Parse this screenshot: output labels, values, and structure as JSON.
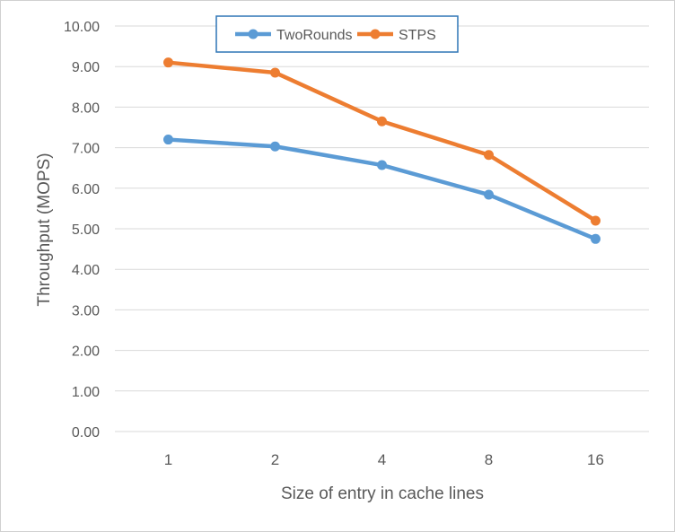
{
  "chart_data": {
    "type": "line",
    "title": "",
    "xlabel": "Size of entry in cache lines",
    "ylabel": "Throughput (MOPS)",
    "categories": [
      "1",
      "2",
      "4",
      "8",
      "16"
    ],
    "ylim": [
      0,
      10
    ],
    "yticks": [
      "0.00",
      "1.00",
      "2.00",
      "3.00",
      "4.00",
      "5.00",
      "6.00",
      "7.00",
      "8.00",
      "9.00",
      "10.00"
    ],
    "grid": true,
    "legend_position": "top",
    "series": [
      {
        "name": "TwoRounds",
        "color": "#5B9BD5",
        "values": [
          7.2,
          7.03,
          6.57,
          5.84,
          4.75
        ]
      },
      {
        "name": "STPS",
        "color": "#ED7D31",
        "values": [
          9.1,
          8.85,
          7.65,
          6.82,
          5.2
        ]
      }
    ]
  }
}
